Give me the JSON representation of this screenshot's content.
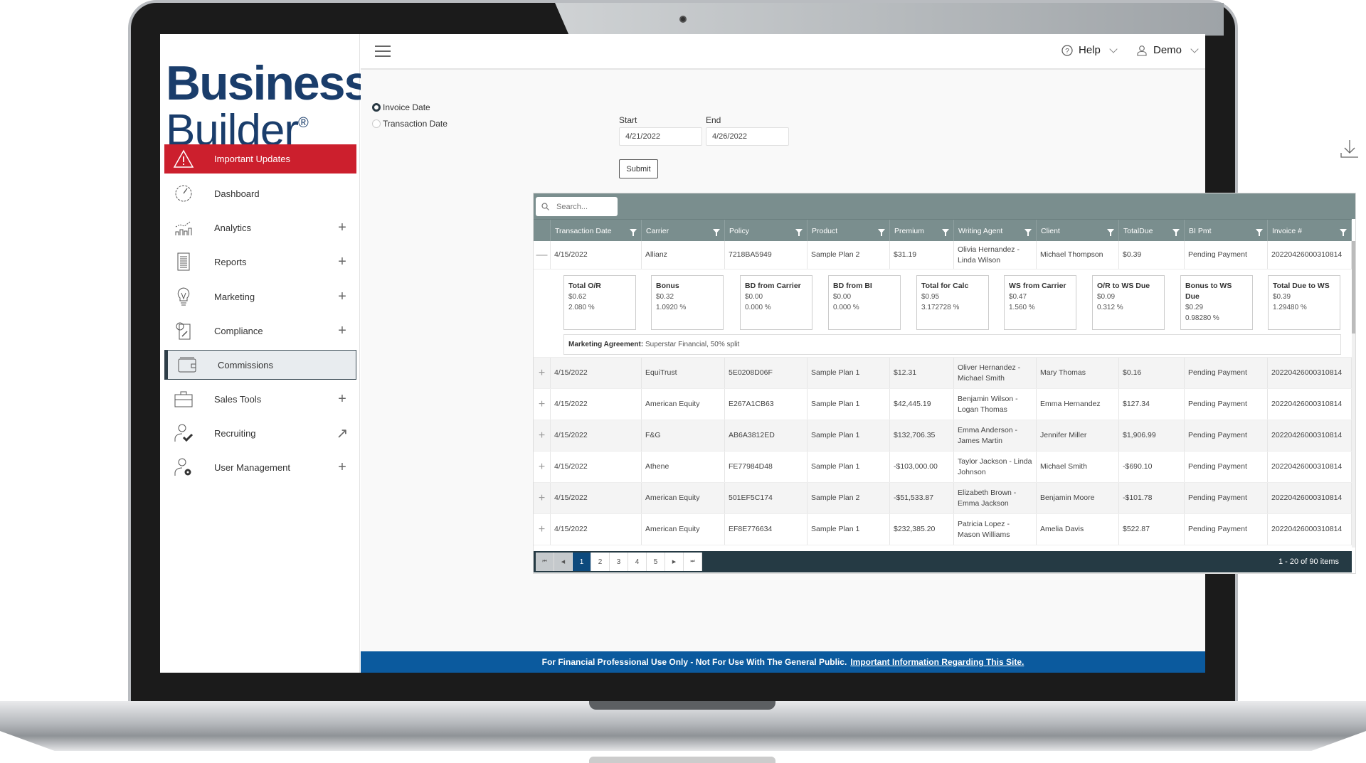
{
  "logo": {
    "line1": "Business",
    "line2": "Builder",
    "mark": "®"
  },
  "colors": {
    "brand": "#1a3d6b",
    "alert": "#cc1f2d",
    "grid_header": "#7a8e8e",
    "pager": "#253a44",
    "banner": "#0b5a9e"
  },
  "sidebar": {
    "items": [
      {
        "label": "Important Updates",
        "icon": "warning-icon",
        "action": ""
      },
      {
        "label": "Dashboard",
        "icon": "gauge-icon",
        "action": ""
      },
      {
        "label": "Analytics",
        "icon": "chart-icon",
        "action": "+"
      },
      {
        "label": "Reports",
        "icon": "document-icon",
        "action": "+"
      },
      {
        "label": "Marketing",
        "icon": "lightbulb-icon",
        "action": "+"
      },
      {
        "label": "Compliance",
        "icon": "compliance-icon",
        "action": "+"
      },
      {
        "label": "Commissions",
        "icon": "wallet-icon",
        "action": ""
      },
      {
        "label": "Sales Tools",
        "icon": "briefcase-icon",
        "action": "+"
      },
      {
        "label": "Recruiting",
        "icon": "user-check-icon",
        "action": "↗"
      },
      {
        "label": "User Management",
        "icon": "user-gear-icon",
        "action": "+"
      }
    ]
  },
  "header": {
    "help": "Help",
    "user": "Demo"
  },
  "filters": {
    "invoice_date": "Invoice Date",
    "transaction_date": "Transaction Date",
    "selected": "Invoice Date",
    "start_label": "Start",
    "end_label": "End",
    "start": "4/21/2022",
    "end": "4/26/2022",
    "submit": "Submit"
  },
  "grid": {
    "search_placeholder": "Search...",
    "columns": [
      "Transaction Date",
      "Carrier",
      "Policy",
      "Product",
      "Premium",
      "Writing Agent",
      "Client",
      "TotalDue",
      "BI Pmt",
      "Invoice #"
    ],
    "rows": [
      {
        "expanded": true,
        "cells": [
          "4/15/2022",
          "Allianz",
          "7218BA5949",
          "Sample Plan 2",
          "$31.19",
          "Olivia Hernandez - Linda Wilson",
          "Michael Thompson",
          "$0.39",
          "Pending Payment",
          "20220426000310814"
        ]
      },
      {
        "expanded": false,
        "cells": [
          "4/15/2022",
          "EquiTrust",
          "5E0208D06F",
          "Sample Plan 1",
          "$12.31",
          "Oliver Hernandez - Michael Smith",
          "Mary Thomas",
          "$0.16",
          "Pending Payment",
          "20220426000310814"
        ]
      },
      {
        "expanded": false,
        "cells": [
          "4/15/2022",
          "American Equity",
          "E267A1CB63",
          "Sample Plan 1",
          "$42,445.19",
          "Benjamin Wilson - Logan Thomas",
          "Emma Hernandez",
          "$127.34",
          "Pending Payment",
          "20220426000310814"
        ]
      },
      {
        "expanded": false,
        "cells": [
          "4/15/2022",
          "F&G",
          "AB6A3812ED",
          "Sample Plan 1",
          "$132,706.35",
          "Emma Anderson - James Martin",
          "Jennifer Miller",
          "$1,906.99",
          "Pending Payment",
          "20220426000310814"
        ]
      },
      {
        "expanded": false,
        "cells": [
          "4/15/2022",
          "Athene",
          "FE77984D48",
          "Sample Plan 1",
          "-$103,000.00",
          "Taylor Jackson - Linda Johnson",
          "Michael Smith",
          "-$690.10",
          "Pending Payment",
          "20220426000310814"
        ]
      },
      {
        "expanded": false,
        "cells": [
          "4/15/2022",
          "American Equity",
          "501EF5C174",
          "Sample Plan 2",
          "-$51,533.87",
          "Elizabeth Brown - Emma Jackson",
          "Benjamin Moore",
          "-$101.78",
          "Pending Payment",
          "20220426000310814"
        ]
      },
      {
        "expanded": false,
        "cells": [
          "4/15/2022",
          "American Equity",
          "EF8E776634",
          "Sample Plan 1",
          "$232,385.20",
          "Patricia Lopez - Mason Williams",
          "Amelia Davis",
          "$522.87",
          "Pending Payment",
          "20220426000310814"
        ]
      }
    ],
    "detail_cards": [
      {
        "title": "Total O/R",
        "amount": "$0.62",
        "pct": "2.080 %"
      },
      {
        "title": "Bonus",
        "amount": "$0.32",
        "pct": "1.0920 %"
      },
      {
        "title": "BD from Carrier",
        "amount": "$0.00",
        "pct": "0.000 %"
      },
      {
        "title": "BD from BI",
        "amount": "$0.00",
        "pct": "0.000 %"
      },
      {
        "title": "Total for Calc",
        "amount": "$0.95",
        "pct": "3.172728 %"
      },
      {
        "title": "WS from Carrier",
        "amount": "$0.47",
        "pct": "1.560 %"
      },
      {
        "title": "O/R to WS Due",
        "amount": "$0.09",
        "pct": "0.312 %"
      },
      {
        "title": "Bonus to WS Due",
        "amount": "$0.29",
        "pct": "0.98280 %"
      },
      {
        "title": "Total Due to WS",
        "amount": "$0.39",
        "pct": "1.29480 %"
      }
    ],
    "marketing_label": "Marketing Agreement:",
    "marketing_value": "Superstar Financial, 50% split",
    "pages": [
      "1",
      "2",
      "3",
      "4",
      "5"
    ],
    "current_page": "1",
    "page_info": "1 - 20 of 90 items"
  },
  "banner": {
    "text": "For Financial Professional Use Only - Not For Use With The General Public.",
    "link": "Important Information Regarding This Site."
  }
}
